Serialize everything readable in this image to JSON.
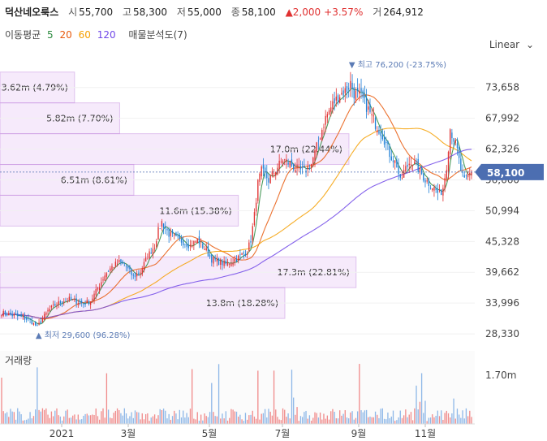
{
  "header": {
    "stock_name": "덕산네오룩스",
    "open_label": "시",
    "open": "55,700",
    "high_label": "고",
    "high": "58,300",
    "low_label": "저",
    "low": "55,000",
    "close_label": "종",
    "close": "58,100",
    "change": "▲2,000",
    "change_pct": "+3.57%",
    "volume_label": "거",
    "volume": "264,912"
  },
  "ma": {
    "label": "이동평균",
    "periods": [
      {
        "value": "5",
        "color": "#2b8a3e"
      },
      {
        "value": "20",
        "color": "#e8590c"
      },
      {
        "value": "60",
        "color": "#f59f00"
      },
      {
        "value": "120",
        "color": "#7048e8"
      }
    ],
    "volume_profile_label": "매물분석도(7)"
  },
  "scale_button": "Linear",
  "chart_data": {
    "type": "candlestick",
    "x_ticks": [
      "2021",
      "3월",
      "5월",
      "7월",
      "9월",
      "11월"
    ],
    "y_ticks": [
      "73,658",
      "67,992",
      "62,326",
      "56,660",
      "50,994",
      "45,328",
      "39,662",
      "33,996",
      "28,330"
    ],
    "y_range": [
      25500,
      79000
    ],
    "current_price": 58100,
    "current_price_label": "58,100",
    "high_marker": "▼ 최고 76,200 (-23.75%)",
    "low_marker": "▲ 최저 29,600 (96.28%)",
    "volume_label": "거래량",
    "volume_tick": "1.70m",
    "volume_max": 1.9,
    "volume_profile": [
      {
        "low": 70830,
        "high": 76500,
        "label": "3.62m (4.79%)",
        "fraction": 0.157
      },
      {
        "low": 65160,
        "high": 70830,
        "label": "5.82m (7.70%)",
        "fraction": 0.252
      },
      {
        "low": 59490,
        "high": 65160,
        "label": "17.0m (22.44%)",
        "fraction": 0.735
      },
      {
        "low": 53830,
        "high": 59490,
        "label": "6.51m (8.61%)",
        "fraction": 0.282
      },
      {
        "low": 48160,
        "high": 53830,
        "label": "11.6m (15.38%)",
        "fraction": 0.502
      },
      {
        "low": 42500,
        "high": 48160,
        "label": "",
        "fraction": 0.0
      },
      {
        "low": 36830,
        "high": 42500,
        "label": "17.3m (22.81%)",
        "fraction": 0.75
      },
      {
        "low": 31160,
        "high": 36830,
        "label": "13.8m (18.28%)",
        "fraction": 0.6
      }
    ],
    "close_path": [
      [
        0,
        32200
      ],
      [
        4,
        31900
      ],
      [
        8,
        31600
      ],
      [
        12,
        31300
      ],
      [
        16,
        30800
      ],
      [
        18,
        30200
      ],
      [
        20,
        29600
      ],
      [
        22,
        30600
      ],
      [
        26,
        32600
      ],
      [
        30,
        33600
      ],
      [
        34,
        34400
      ],
      [
        38,
        34700
      ],
      [
        42,
        34300
      ],
      [
        46,
        33900
      ],
      [
        50,
        34400
      ],
      [
        54,
        36700
      ],
      [
        58,
        39200
      ],
      [
        62,
        40700
      ],
      [
        66,
        41500
      ],
      [
        70,
        40600
      ],
      [
        74,
        38800
      ],
      [
        78,
        39800
      ],
      [
        82,
        42600
      ],
      [
        86,
        44600
      ],
      [
        88,
        47300
      ],
      [
        90,
        48900
      ],
      [
        94,
        46700
      ],
      [
        98,
        45800
      ],
      [
        102,
        45300
      ],
      [
        106,
        44600
      ],
      [
        110,
        45600
      ],
      [
        114,
        44100
      ],
      [
        118,
        42100
      ],
      [
        122,
        41600
      ],
      [
        126,
        41100
      ],
      [
        130,
        41800
      ],
      [
        134,
        42600
      ],
      [
        138,
        43600
      ],
      [
        140,
        45600
      ],
      [
        142,
        50200
      ],
      [
        144,
        56100
      ],
      [
        146,
        58300
      ],
      [
        148,
        57600
      ],
      [
        150,
        56600
      ],
      [
        154,
        58600
      ],
      [
        158,
        60400
      ],
      [
        162,
        59600
      ],
      [
        166,
        58600
      ],
      [
        170,
        58200
      ],
      [
        174,
        59600
      ],
      [
        178,
        63800
      ],
      [
        182,
        68100
      ],
      [
        186,
        70600
      ],
      [
        190,
        72300
      ],
      [
        194,
        73300
      ],
      [
        196,
        74500
      ],
      [
        198,
        72600
      ],
      [
        202,
        72000
      ],
      [
        206,
        69600
      ],
      [
        210,
        67000
      ],
      [
        214,
        65000
      ],
      [
        218,
        61500
      ],
      [
        222,
        59400
      ],
      [
        224,
        56200
      ],
      [
        226,
        58200
      ],
      [
        230,
        60300
      ],
      [
        234,
        58700
      ],
      [
        238,
        56700
      ],
      [
        242,
        55500
      ],
      [
        246,
        53900
      ],
      [
        248,
        55300
      ],
      [
        250,
        59300
      ],
      [
        252,
        66100
      ],
      [
        254,
        64200
      ],
      [
        256,
        62000
      ],
      [
        258,
        58400
      ],
      [
        260,
        56300
      ],
      [
        262,
        57500
      ],
      [
        264,
        58100
      ]
    ]
  }
}
